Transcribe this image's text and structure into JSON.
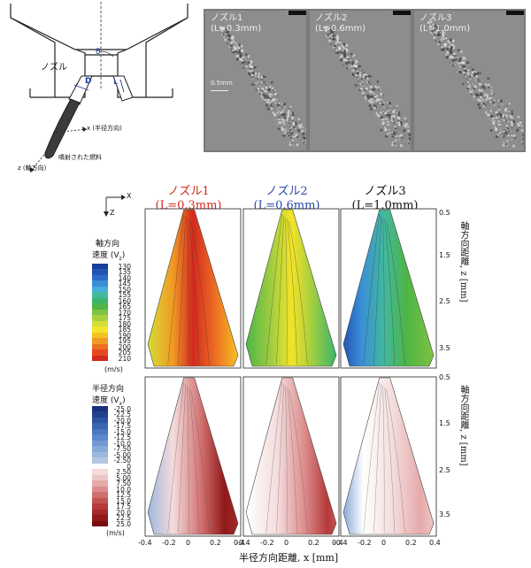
{
  "schematic": {
    "nozzle_label": "ノズル",
    "theta": "θ",
    "d_label": "D",
    "l_label": "L",
    "radial_axis": "x (半径方向)",
    "axial_axis": "z (軸方向)",
    "spray_label": "噴射された燃料"
  },
  "photos": {
    "items": [
      {
        "title": "ノズル1",
        "sub": "(L=0.3mm)"
      },
      {
        "title": "ノズル2",
        "sub": "(L=0.6mm)"
      },
      {
        "title": "ノズル3",
        "sub": "(L=1.0mm)"
      }
    ],
    "scale_label": "0.5mm"
  },
  "figure": {
    "axes_x": "X",
    "axes_z": "Z",
    "panels": [
      {
        "title": "ノズル1",
        "sub": "(L=0.3mm)",
        "color": "#d42a1f"
      },
      {
        "title": "ノズル2",
        "sub": "(L=0.6mm)",
        "color": "#2a48a8"
      },
      {
        "title": "ノズル3",
        "sub": "(L=1.0mm)",
        "color": "#111111"
      }
    ],
    "axial_cb": {
      "title1": "軸方向",
      "title2": "速度 (V",
      "subscript": "z",
      "close": ")",
      "labels": [
        "130",
        "135",
        "140",
        "145",
        "150",
        "155",
        "160",
        "165",
        "170",
        "175",
        "180",
        "185",
        "190",
        "195",
        "200",
        "205",
        "210"
      ],
      "colors": [
        "#173f9c",
        "#2355b5",
        "#2f6cc9",
        "#3a8fd6",
        "#46afd9",
        "#42b89f",
        "#3ab56a",
        "#4eb547",
        "#7fc242",
        "#a7cf3f",
        "#d5dd38",
        "#f3e428",
        "#f6c223",
        "#f19a23",
        "#ec6f22",
        "#e44a21",
        "#d42a1f"
      ],
      "unit": "(m/s)"
    },
    "radial_cb": {
      "title1": "半径方向",
      "title2": "速度 (V",
      "subscript": "x",
      "close": ")",
      "labels_neg": [
        "-25.0",
        "-22.5",
        "-20.0",
        "-17.5",
        "-15.0",
        "-12.5",
        "-10.0",
        "-7.50",
        "-5.00",
        "-2.50"
      ],
      "colors_neg": [
        "#1a2e7a",
        "#23408f",
        "#2d53a3",
        "#3a65b3",
        "#4a77c0",
        "#5d88c9",
        "#7199d0",
        "#86a9d7",
        "#9cb8dd",
        "#b3c7e3"
      ],
      "zero": "0",
      "labels_pos": [
        "2.50",
        "5.00",
        "7.50",
        "10.0",
        "12.5",
        "15.0",
        "17.5",
        "20.0",
        "22.5",
        "25.0"
      ],
      "colors_pos": [
        "#f4dcdc",
        "#eec5c5",
        "#e6aaaa",
        "#dc8c8c",
        "#d16e6e",
        "#c45252",
        "#b53a3a",
        "#a42828",
        "#901919",
        "#7a0d0d"
      ],
      "unit": "(m/s)"
    },
    "y_axis_label": "軸方向距離, z [mm]",
    "y_ticks": [
      "0.5",
      "1.5",
      "2.5",
      "3.5"
    ],
    "x_ticks": [
      "-0.4",
      "-0.2",
      "0",
      "0.2",
      "0.4"
    ],
    "x_axis_label": "半径方向距離, x [mm]"
  }
}
